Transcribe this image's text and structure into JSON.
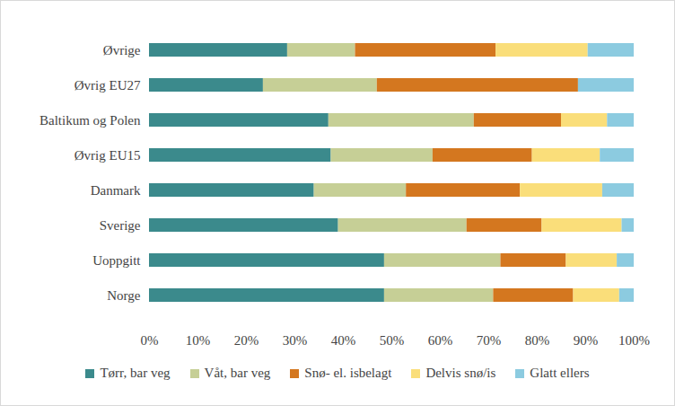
{
  "chart_data": {
    "type": "bar",
    "orientation": "horizontal",
    "stacked": true,
    "categories": [
      "Øvrige",
      "Øvrig EU27",
      "Baltikum og Polen",
      "Øvrig EU15",
      "Danmark",
      "Sverige",
      "Uoppgitt",
      "Norge"
    ],
    "series": [
      {
        "name": "Tørr, bar veg",
        "color": "#3b8a8c",
        "values": [
          28.5,
          23.5,
          37,
          37.5,
          34,
          39,
          48.5,
          48.5
        ]
      },
      {
        "name": "Våt, bar veg",
        "color": "#c6cf96",
        "values": [
          14,
          23.5,
          30,
          21,
          19,
          26.5,
          24,
          22.5
        ]
      },
      {
        "name": "Snø- el. isbelagt",
        "color": "#d4771f",
        "values": [
          29,
          41.5,
          18,
          20.5,
          23.5,
          15.5,
          13.5,
          16.5
        ]
      },
      {
        "name": "Delvis snø/is",
        "color": "#fade7a",
        "values": [
          19,
          0,
          9.5,
          14,
          17,
          16.5,
          10.5,
          9.5
        ]
      },
      {
        "name": "Glatt ellers",
        "color": "#8ccbe0",
        "values": [
          9.5,
          11.5,
          5.5,
          7,
          6.5,
          2.5,
          3.5,
          3
        ]
      }
    ],
    "xlim": [
      0,
      100
    ],
    "xticks": [
      {
        "value": 0,
        "label": "0%"
      },
      {
        "value": 10,
        "label": "10%"
      },
      {
        "value": 20,
        "label": "20%"
      },
      {
        "value": 30,
        "label": "30%"
      },
      {
        "value": 40,
        "label": "40%"
      },
      {
        "value": 50,
        "label": "50%"
      },
      {
        "value": 60,
        "label": "60%"
      },
      {
        "value": 70,
        "label": "70%"
      },
      {
        "value": 80,
        "label": "80%"
      },
      {
        "value": 90,
        "label": "90%"
      },
      {
        "value": 100,
        "label": "100%"
      }
    ],
    "grid": false,
    "legend": "bottom"
  }
}
